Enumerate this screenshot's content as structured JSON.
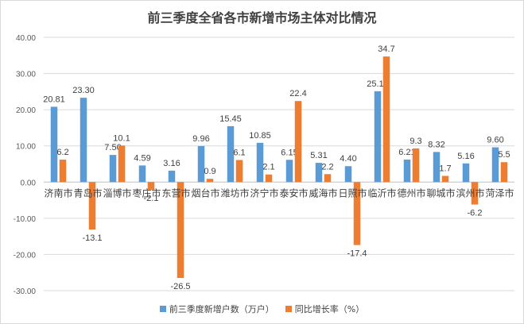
{
  "colors": {
    "series1": "#5b9bd5",
    "series2": "#ed7d31",
    "grid": "#d9d9d9",
    "text": "#404040"
  },
  "chart_data": {
    "type": "bar",
    "title": "前三季度全省各市新增市场主体对比情况",
    "categories": [
      "济南市",
      "青岛市",
      "淄博市",
      "枣庄市",
      "东营市",
      "烟台市",
      "潍坊市",
      "济宁市",
      "泰安市",
      "威海市",
      "日照市",
      "临沂市",
      "德州市",
      "聊城市",
      "滨州市",
      "菏泽市"
    ],
    "series": [
      {
        "name": "前三季度新增户数（万户）",
        "values": [
          20.81,
          23.3,
          7.5,
          4.59,
          3.16,
          9.96,
          15.45,
          10.85,
          6.15,
          5.31,
          4.4,
          25.1,
          6.21,
          8.32,
          5.16,
          9.6
        ],
        "labels": [
          "20.81",
          "23.30",
          "7.50",
          "4.59",
          "3.16",
          "9.96",
          "15.45",
          "10.85",
          "6.15",
          "5.31",
          "4.40",
          "25.10",
          "6.21",
          "8.32",
          "5.16",
          "9.60"
        ]
      },
      {
        "name": "同比增长率（%）",
        "values": [
          6.2,
          -13.1,
          10.1,
          -2.1,
          -26.5,
          0.9,
          6.1,
          2.1,
          22.4,
          2.2,
          -17.4,
          34.7,
          9.3,
          1.7,
          -6.2,
          5.5
        ],
        "labels": [
          "6.2",
          "-13.1",
          "10.1",
          "-2.1",
          "-26.5",
          "0.9",
          "6.1",
          "2.1",
          "22.4",
          "2.2",
          "-17.4",
          "34.7",
          "9.3",
          "1.7",
          "-6.2",
          "5.5"
        ]
      }
    ],
    "ylim": [
      -30,
      40
    ],
    "yticks": [
      "40.00",
      "30.00",
      "20.00",
      "10.00",
      "0.00",
      "-10.00",
      "-20.00",
      "-30.00"
    ],
    "grid": true,
    "legend": "bottom"
  }
}
